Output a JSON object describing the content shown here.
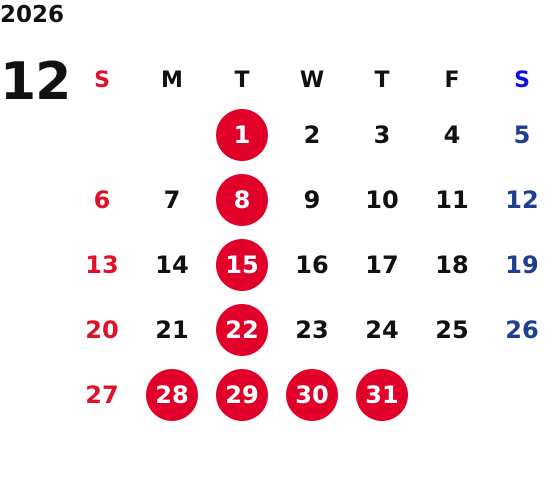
{
  "calendar": {
    "year": "2026",
    "month": "12",
    "weekdays": [
      "S",
      "M",
      "T",
      "W",
      "T",
      "F",
      "S"
    ],
    "weeks": [
      [
        "",
        "",
        "1",
        "2",
        "3",
        "4",
        "5"
      ],
      [
        "6",
        "7",
        "8",
        "9",
        "10",
        "11",
        "12"
      ],
      [
        "13",
        "14",
        "15",
        "16",
        "17",
        "18",
        "19"
      ],
      [
        "20",
        "21",
        "22",
        "23",
        "24",
        "25",
        "26"
      ],
      [
        "27",
        "28",
        "29",
        "30",
        "31",
        "",
        ""
      ]
    ],
    "highlighted_days": [
      "1",
      "8",
      "15",
      "22",
      "28",
      "29",
      "30",
      "31"
    ],
    "colors": {
      "sunday": "#e0112b",
      "saturday_header": "#1010e0",
      "saturday": "#1f3e8f",
      "highlight_fill": "#e0002a",
      "text": "#111111"
    }
  }
}
